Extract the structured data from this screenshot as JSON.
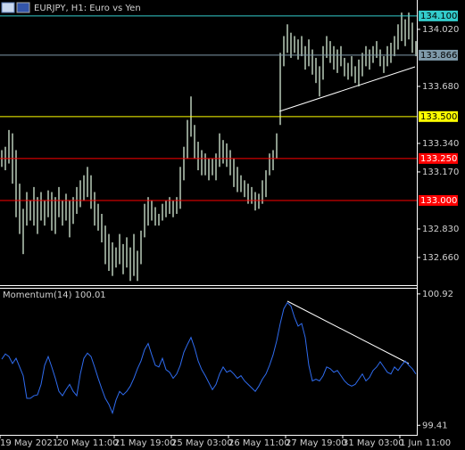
{
  "chart_data": [
    {
      "type": "ohlc",
      "title": "EURJPY, H1:  Euro vs Yen",
      "color": "#d6ecd6",
      "ylim": [
        132.495,
        134.195
      ],
      "yticks": [
        {
          "value": 134.02,
          "label": "134.020"
        },
        {
          "value": 133.68,
          "label": "133.680"
        },
        {
          "value": 133.34,
          "label": "133.340"
        },
        {
          "value": 133.17,
          "label": "133.170"
        },
        {
          "value": 132.83,
          "label": "132.830"
        },
        {
          "value": 132.66,
          "label": "132.660"
        }
      ],
      "levels": [
        {
          "value": 134.1,
          "label": "134.100",
          "color": "#33cccc"
        },
        {
          "value": 133.866,
          "label": "133.866",
          "color": "#7f9aaa"
        },
        {
          "value": 133.5,
          "label": "133.500",
          "color": "#ffff00"
        },
        {
          "value": 133.25,
          "label": "133.250",
          "color": "#ff0000"
        },
        {
          "value": 133.0,
          "label": "133.000",
          "color": "#ff0000"
        }
      ],
      "high": [
        133.3,
        133.32,
        133.42,
        133.4,
        133.3,
        133.1,
        132.95,
        133.05,
        133.0,
        133.08,
        133.02,
        133.05,
        133.0,
        133.06,
        133.05,
        133.02,
        133.08,
        133.0,
        133.04,
        133.0,
        133.02,
        133.08,
        133.12,
        133.15,
        133.2,
        133.15,
        133.05,
        132.98,
        132.92,
        132.85,
        132.8,
        132.75,
        132.72,
        132.8,
        132.74,
        132.78,
        132.72,
        132.8,
        132.7,
        132.82,
        132.98,
        133.02,
        133.0,
        132.96,
        132.92,
        132.98,
        133.0,
        133.02,
        133.0,
        133.02,
        133.2,
        133.32,
        133.48,
        133.62,
        133.45,
        133.35,
        133.3,
        133.28,
        133.25,
        133.25,
        133.28,
        133.4,
        133.36,
        133.34,
        133.3,
        133.25,
        133.2,
        133.15,
        133.12,
        133.1,
        133.08,
        133.05,
        133.04,
        133.12,
        133.18,
        133.28,
        133.3,
        133.4,
        133.88,
        133.98,
        134.05,
        134.0,
        133.98,
        133.96,
        133.98,
        133.92,
        133.96,
        133.9,
        133.85,
        133.8,
        133.92,
        133.98,
        133.95,
        133.92,
        133.9,
        133.92,
        133.85,
        133.82,
        133.86,
        133.8,
        133.84,
        133.88,
        133.92,
        133.9,
        133.92,
        133.95,
        133.9,
        133.86,
        133.92,
        133.94,
        133.98,
        134.05,
        134.12,
        134.08,
        134.12,
        134.06,
        133.95
      ],
      "low": [
        133.2,
        133.18,
        133.22,
        133.1,
        132.9,
        132.8,
        132.68,
        132.85,
        132.88,
        132.85,
        132.8,
        132.88,
        132.85,
        132.9,
        132.82,
        132.8,
        132.9,
        132.85,
        132.88,
        132.78,
        132.86,
        132.92,
        132.96,
        133.0,
        133.02,
        132.95,
        132.85,
        132.82,
        132.75,
        132.62,
        132.58,
        132.55,
        132.6,
        132.62,
        132.56,
        132.6,
        132.52,
        132.55,
        132.52,
        132.62,
        132.78,
        132.85,
        132.88,
        132.85,
        132.85,
        132.88,
        132.9,
        132.92,
        132.9,
        132.92,
        132.95,
        133.12,
        133.25,
        133.38,
        133.25,
        133.18,
        133.15,
        133.15,
        133.12,
        133.15,
        133.12,
        133.2,
        133.22,
        133.2,
        133.15,
        133.08,
        133.05,
        133.05,
        133.02,
        132.98,
        132.98,
        132.94,
        132.95,
        132.98,
        133.02,
        133.15,
        133.18,
        133.25,
        133.45,
        133.8,
        133.88,
        133.85,
        133.88,
        133.84,
        133.86,
        133.78,
        133.8,
        133.75,
        133.7,
        133.62,
        133.72,
        133.85,
        133.82,
        133.78,
        133.76,
        133.8,
        133.74,
        133.72,
        133.74,
        133.7,
        133.68,
        133.74,
        133.8,
        133.78,
        133.82,
        133.85,
        133.8,
        133.76,
        133.8,
        133.82,
        133.86,
        133.9,
        133.95,
        133.92,
        133.96,
        133.88,
        133.86
      ]
    },
    {
      "type": "line",
      "title": "Momentum(14) 100.01",
      "color": "#2f6cf0",
      "ylim": [
        99.3,
        100.98
      ],
      "yticks": [
        100.92,
        99.41
      ],
      "categories": [
        "19 May 2021",
        null,
        null,
        null,
        null,
        null,
        null,
        null,
        null,
        null,
        null,
        null,
        null,
        null,
        null,
        null,
        "20 May 11:00",
        null,
        null,
        null,
        null,
        null,
        null,
        null,
        null,
        null,
        null,
        null,
        null,
        null,
        null,
        null,
        "21 May 19:00",
        null,
        null,
        null,
        null,
        null,
        null,
        null,
        null,
        null,
        null,
        null,
        null,
        null,
        null,
        null,
        "25 May 03:00",
        null,
        null,
        null,
        null,
        null,
        null,
        null,
        null,
        null,
        null,
        null,
        null,
        null,
        null,
        null,
        "26 May 11:00",
        null,
        null,
        null,
        null,
        null,
        null,
        null,
        null,
        null,
        null,
        null,
        null,
        null,
        null,
        null,
        "27 May 19:00",
        null,
        null,
        null,
        null,
        null,
        null,
        null,
        null,
        null,
        null,
        null,
        null,
        null,
        null,
        null,
        "31 May 03:00",
        null,
        null,
        null,
        null,
        null,
        null,
        null,
        null,
        null,
        null,
        null,
        null,
        null,
        null,
        null,
        "1 Jun 11:00",
        null,
        null,
        null,
        null
      ],
      "values": [
        100.17,
        100.23,
        100.2,
        100.12,
        100.18,
        100.08,
        99.98,
        99.72,
        99.72,
        99.75,
        99.76,
        99.88,
        100.1,
        100.2,
        100.08,
        99.95,
        99.8,
        99.75,
        99.82,
        99.88,
        99.8,
        99.75,
        100.0,
        100.18,
        100.24,
        100.2,
        100.08,
        99.95,
        99.83,
        99.72,
        99.65,
        99.55,
        99.7,
        99.8,
        99.76,
        99.8,
        99.86,
        99.95,
        100.06,
        100.15,
        100.28,
        100.35,
        100.22,
        100.1,
        100.08,
        100.18,
        100.05,
        100.02,
        99.95,
        100.0,
        100.1,
        100.25,
        100.34,
        100.42,
        100.3,
        100.15,
        100.05,
        99.98,
        99.9,
        99.82,
        99.88,
        100.0,
        100.08,
        100.02,
        100.04,
        100.0,
        99.95,
        99.98,
        99.92,
        99.88,
        99.84,
        99.8,
        99.86,
        99.94,
        100.0,
        100.1,
        100.22,
        100.38,
        100.58,
        100.75,
        100.82,
        100.78,
        100.65,
        100.55,
        100.58,
        100.42,
        100.1,
        99.92,
        99.94,
        99.92,
        99.98,
        100.08,
        100.06,
        100.02,
        100.04,
        99.98,
        99.92,
        99.88,
        99.86,
        99.88,
        99.94,
        100.0,
        99.92,
        99.96,
        100.04,
        100.08,
        100.14,
        100.08,
        100.02,
        100.0,
        100.08,
        100.04,
        100.1,
        100.15,
        100.1,
        100.06,
        100.0
      ]
    }
  ]
}
